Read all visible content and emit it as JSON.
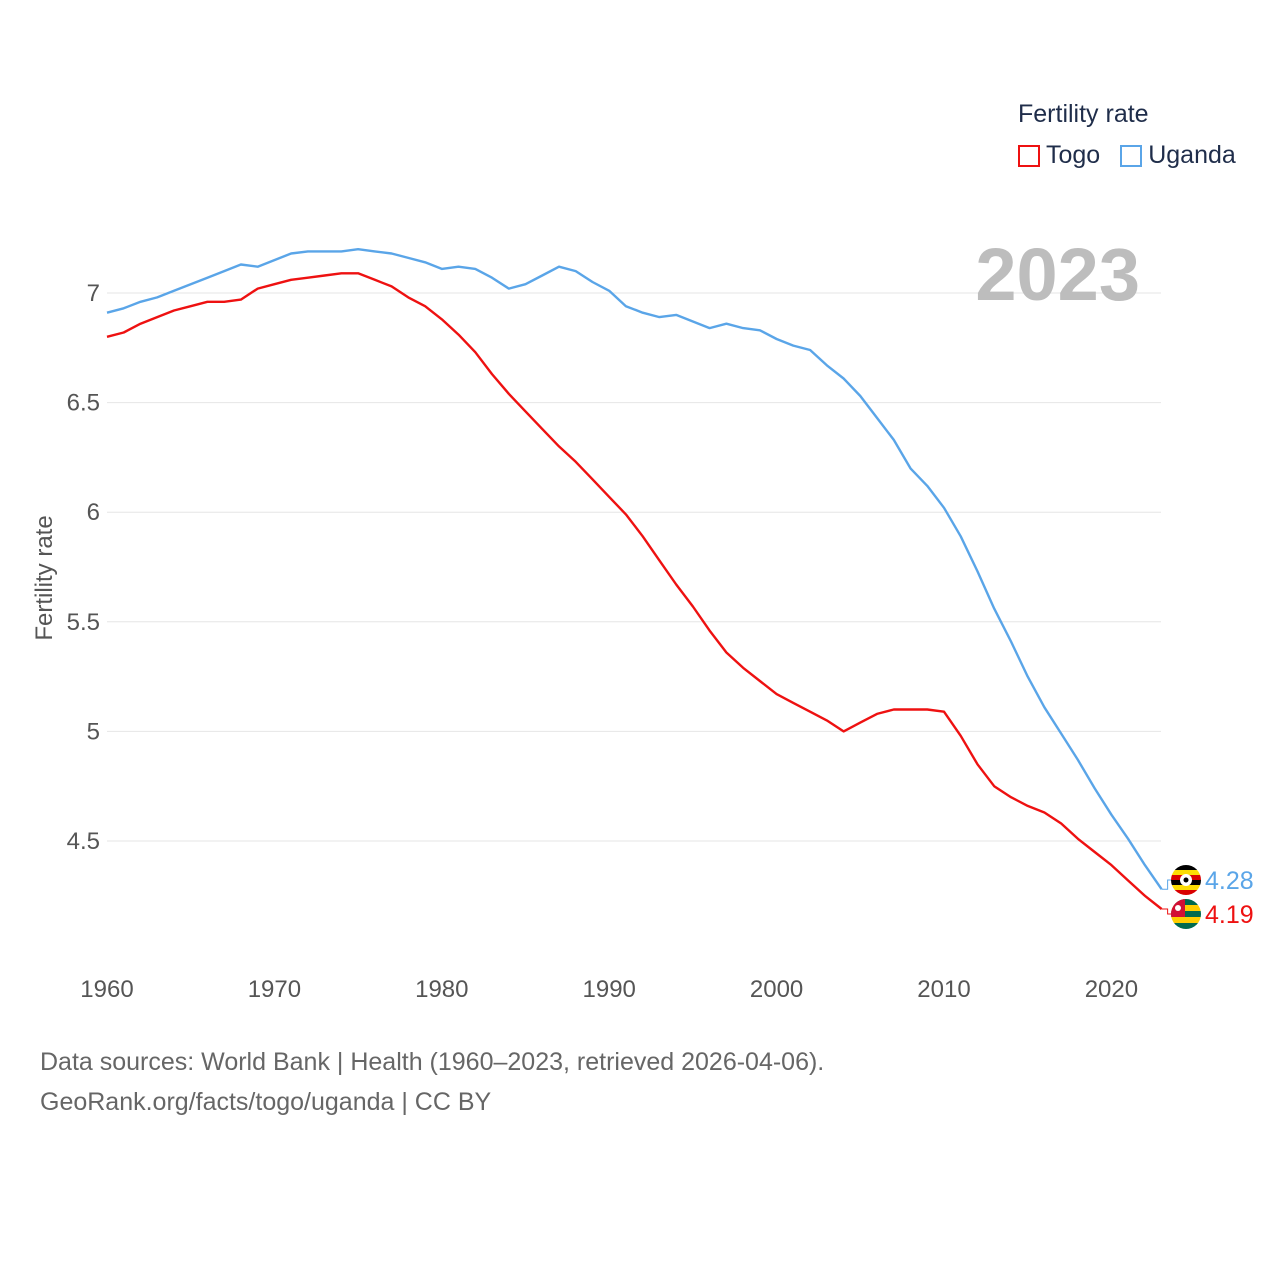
{
  "chart_data": {
    "type": "line",
    "title": "",
    "xlabel": "",
    "ylabel": "Fertility rate",
    "xlim": [
      1960,
      2023
    ],
    "ylim": [
      4.0,
      7.3
    ],
    "yticks": [
      4.5,
      5,
      5.5,
      6,
      6.5,
      7
    ],
    "yticklabels": [
      "4.5",
      "5",
      "5.5",
      "6",
      "6.5",
      "7"
    ],
    "xticks": [
      1960,
      1970,
      1980,
      1990,
      2000,
      2010,
      2020
    ],
    "xticklabels": [
      "1960",
      "1970",
      "1980",
      "1990",
      "2000",
      "2010",
      "2020"
    ],
    "year_watermark": "2023",
    "legend": {
      "title": "Fertility rate",
      "position": "top-right"
    },
    "series": [
      {
        "name": "Togo",
        "color": "#ee1111",
        "end_label": "4.19",
        "x": [
          1960,
          1961,
          1962,
          1963,
          1964,
          1965,
          1966,
          1967,
          1968,
          1969,
          1970,
          1971,
          1972,
          1973,
          1974,
          1975,
          1976,
          1977,
          1978,
          1979,
          1980,
          1981,
          1982,
          1983,
          1984,
          1985,
          1986,
          1987,
          1988,
          1989,
          1990,
          1991,
          1992,
          1993,
          1994,
          1995,
          1996,
          1997,
          1998,
          1999,
          2000,
          2001,
          2002,
          2003,
          2004,
          2005,
          2006,
          2007,
          2008,
          2009,
          2010,
          2011,
          2012,
          2013,
          2014,
          2015,
          2016,
          2017,
          2018,
          2019,
          2020,
          2021,
          2022,
          2023
        ],
        "values": [
          6.8,
          6.82,
          6.86,
          6.89,
          6.92,
          6.94,
          6.96,
          6.96,
          6.97,
          7.02,
          7.04,
          7.06,
          7.07,
          7.08,
          7.09,
          7.09,
          7.06,
          7.03,
          6.98,
          6.94,
          6.88,
          6.81,
          6.73,
          6.63,
          6.54,
          6.46,
          6.38,
          6.3,
          6.23,
          6.15,
          6.07,
          5.99,
          5.89,
          5.78,
          5.67,
          5.57,
          5.46,
          5.36,
          5.29,
          5.23,
          5.17,
          5.13,
          5.09,
          5.05,
          5.0,
          5.04,
          5.08,
          5.1,
          5.1,
          5.1,
          5.09,
          4.98,
          4.85,
          4.75,
          4.7,
          4.66,
          4.63,
          4.58,
          4.51,
          4.45,
          4.39,
          4.32,
          4.25,
          4.19
        ]
      },
      {
        "name": "Uganda",
        "color": "#5aa5e8",
        "end_label": "4.28",
        "x": [
          1960,
          1961,
          1962,
          1963,
          1964,
          1965,
          1966,
          1967,
          1968,
          1969,
          1970,
          1971,
          1972,
          1973,
          1974,
          1975,
          1976,
          1977,
          1978,
          1979,
          1980,
          1981,
          1982,
          1983,
          1984,
          1985,
          1986,
          1987,
          1988,
          1989,
          1990,
          1991,
          1992,
          1993,
          1994,
          1995,
          1996,
          1997,
          1998,
          1999,
          2000,
          2001,
          2002,
          2003,
          2004,
          2005,
          2006,
          2007,
          2008,
          2009,
          2010,
          2011,
          2012,
          2013,
          2014,
          2015,
          2016,
          2017,
          2018,
          2019,
          2020,
          2021,
          2022,
          2023
        ],
        "values": [
          6.91,
          6.93,
          6.96,
          6.98,
          7.01,
          7.04,
          7.07,
          7.1,
          7.13,
          7.12,
          7.15,
          7.18,
          7.19,
          7.19,
          7.19,
          7.2,
          7.19,
          7.18,
          7.16,
          7.14,
          7.11,
          7.12,
          7.11,
          7.07,
          7.02,
          7.04,
          7.08,
          7.12,
          7.1,
          7.05,
          7.01,
          6.94,
          6.91,
          6.89,
          6.9,
          6.87,
          6.84,
          6.86,
          6.84,
          6.83,
          6.79,
          6.76,
          6.74,
          6.67,
          6.61,
          6.53,
          6.43,
          6.33,
          6.2,
          6.12,
          6.02,
          5.89,
          5.73,
          5.56,
          5.41,
          5.25,
          5.11,
          4.99,
          4.87,
          4.74,
          4.62,
          4.51,
          4.39,
          4.28
        ]
      }
    ]
  },
  "footer": {
    "line1": "Data sources: World Bank | Health (1960–2023, retrieved 2026-04-06).",
    "line2": "GeoRank.org/facts/togo/uganda | CC BY"
  }
}
